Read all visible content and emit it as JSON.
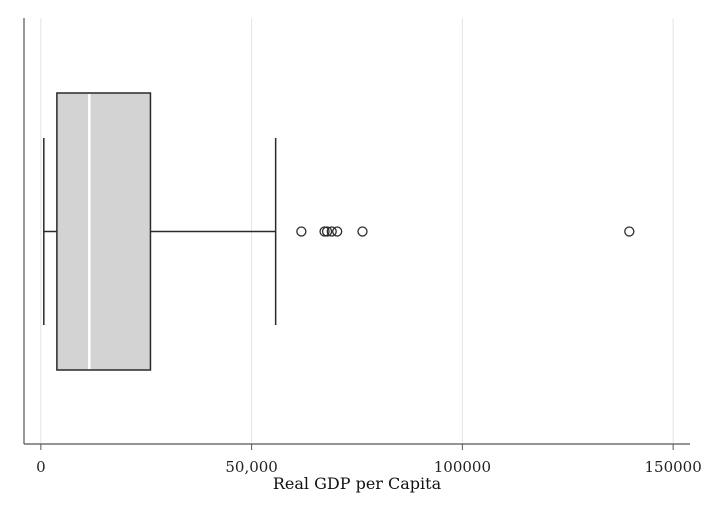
{
  "chart_data": {
    "type": "boxplot",
    "orientation": "horizontal",
    "title": "",
    "xlabel": "Real GDP per Capita",
    "ylabel": "",
    "xlim": [
      -4000,
      154000
    ],
    "grid": true,
    "ticks": [
      {
        "value": 0,
        "label": "0"
      },
      {
        "value": 50000,
        "label": "50,000"
      },
      {
        "value": 100000,
        "label": "100000"
      },
      {
        "value": 150000,
        "label": "150000"
      }
    ],
    "box": {
      "whisker_low": 700,
      "q1": 3800,
      "median": 11500,
      "q3": 26000,
      "whisker_high": 55700
    },
    "outliers": [
      61800,
      67300,
      67900,
      69000,
      70300,
      76300,
      139600
    ],
    "colors": {
      "box_fill": "#d3d3d3",
      "box_stroke": "#2a2a2a",
      "median": "#ffffff",
      "grid": "#e3e3e3",
      "axis": "#555555"
    }
  }
}
